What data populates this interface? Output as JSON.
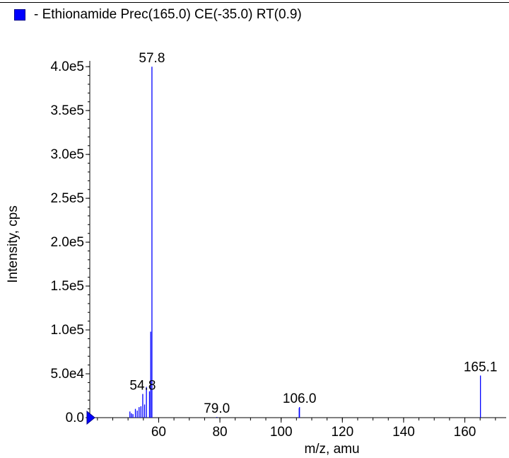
{
  "legend": {
    "label": "- Ethionamide Prec(165.0) CE(-35.0) RT(0.9)",
    "color": "#0000ff"
  },
  "chart_data": {
    "type": "bar",
    "title": "",
    "xlabel": "m/z, amu",
    "ylabel": "Intensity, cps",
    "xlim": [
      37.5,
      173.5
    ],
    "ylim": [
      0,
      405000
    ],
    "x_ticks": [
      60,
      80,
      100,
      120,
      140,
      160
    ],
    "y_ticks": [
      0,
      50000,
      100000,
      150000,
      200000,
      250000,
      300000,
      350000,
      400000
    ],
    "y_tick_labels": [
      "0.0",
      "5.0e4",
      "1.0e5",
      "1.5e5",
      "2.0e5",
      "2.5e5",
      "3.0e5",
      "3.5e5",
      "4.0e5"
    ],
    "series": [
      {
        "name": "- Ethionamide Prec(165.0) CE(-35.0) RT(0.9)",
        "color": "#0000ff",
        "peaks": [
          {
            "mz": 50.6,
            "intensity": 7000
          },
          {
            "mz": 51.1,
            "intensity": 5000
          },
          {
            "mz": 51.6,
            "intensity": 4000
          },
          {
            "mz": 52.4,
            "intensity": 10000
          },
          {
            "mz": 53.0,
            "intensity": 8000
          },
          {
            "mz": 53.6,
            "intensity": 12000
          },
          {
            "mz": 54.2,
            "intensity": 13000
          },
          {
            "mz": 54.8,
            "intensity": 27000
          },
          {
            "mz": 55.4,
            "intensity": 15000
          },
          {
            "mz": 56.0,
            "intensity": 35000
          },
          {
            "mz": 57.0,
            "intensity": 30000
          },
          {
            "mz": 57.4,
            "intensity": 98000
          },
          {
            "mz": 57.8,
            "intensity": 400000
          },
          {
            "mz": 79.0,
            "intensity": 800
          },
          {
            "mz": 105.9,
            "intensity": 11000
          },
          {
            "mz": 106.0,
            "intensity": 12000
          },
          {
            "mz": 165.1,
            "intensity": 48000
          }
        ]
      }
    ],
    "annotations": [
      {
        "text": "57.8",
        "mz": 57.8,
        "intensity": 400000
      },
      {
        "text": "54.8",
        "mz": 54.8,
        "intensity": 27000
      },
      {
        "text": "79.0",
        "mz": 79.0,
        "intensity": 800
      },
      {
        "text": "106.0",
        "mz": 106.0,
        "intensity": 12000
      },
      {
        "text": "165.1",
        "mz": 165.1,
        "intensity": 48000
      }
    ],
    "grid": false,
    "legend_position": "top-left"
  }
}
